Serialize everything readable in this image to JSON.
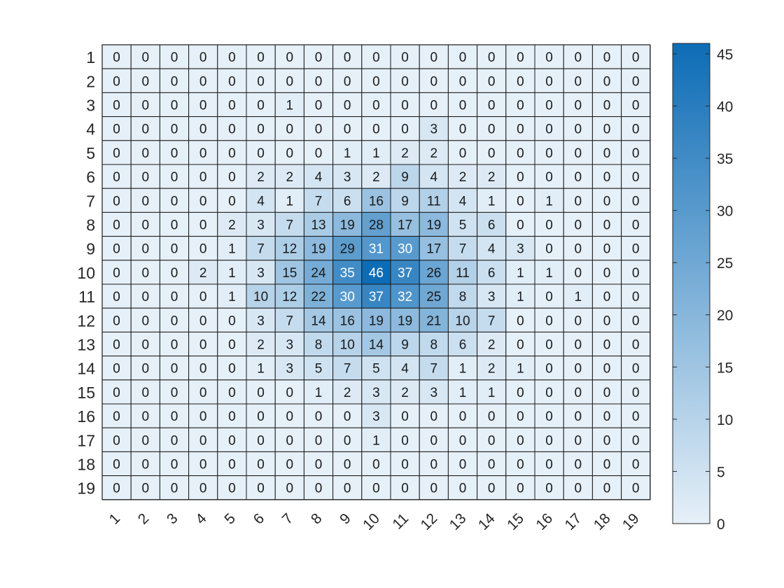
{
  "chart_data": {
    "type": "heatmap",
    "title": "",
    "xlabel": "",
    "ylabel": "",
    "x_tick_labels": [
      "1",
      "2",
      "3",
      "4",
      "5",
      "6",
      "7",
      "8",
      "9",
      "10",
      "11",
      "12",
      "13",
      "14",
      "15",
      "16",
      "17",
      "18",
      "19"
    ],
    "y_tick_labels": [
      "1",
      "2",
      "3",
      "4",
      "5",
      "6",
      "7",
      "8",
      "9",
      "10",
      "11",
      "12",
      "13",
      "14",
      "15",
      "16",
      "17",
      "18",
      "19"
    ],
    "values": [
      [
        0,
        0,
        0,
        0,
        0,
        0,
        0,
        0,
        0,
        0,
        0,
        0,
        0,
        0,
        0,
        0,
        0,
        0,
        0
      ],
      [
        0,
        0,
        0,
        0,
        0,
        0,
        0,
        0,
        0,
        0,
        0,
        0,
        0,
        0,
        0,
        0,
        0,
        0,
        0
      ],
      [
        0,
        0,
        0,
        0,
        0,
        0,
        1,
        0,
        0,
        0,
        0,
        0,
        0,
        0,
        0,
        0,
        0,
        0,
        0
      ],
      [
        0,
        0,
        0,
        0,
        0,
        0,
        0,
        0,
        0,
        0,
        0,
        3,
        0,
        0,
        0,
        0,
        0,
        0,
        0
      ],
      [
        0,
        0,
        0,
        0,
        0,
        0,
        0,
        0,
        1,
        1,
        2,
        2,
        0,
        0,
        0,
        0,
        0,
        0,
        0
      ],
      [
        0,
        0,
        0,
        0,
        0,
        2,
        2,
        4,
        3,
        2,
        9,
        4,
        2,
        2,
        0,
        0,
        0,
        0,
        0
      ],
      [
        0,
        0,
        0,
        0,
        0,
        4,
        1,
        7,
        6,
        16,
        9,
        11,
        4,
        1,
        0,
        1,
        0,
        0,
        0
      ],
      [
        0,
        0,
        0,
        0,
        2,
        3,
        7,
        13,
        19,
        28,
        17,
        19,
        5,
        6,
        0,
        0,
        0,
        0,
        0
      ],
      [
        0,
        0,
        0,
        0,
        1,
        7,
        12,
        19,
        29,
        31,
        30,
        17,
        7,
        4,
        3,
        0,
        0,
        0,
        0
      ],
      [
        0,
        0,
        0,
        2,
        1,
        3,
        15,
        24,
        35,
        46,
        37,
        26,
        11,
        6,
        1,
        1,
        0,
        0,
        0
      ],
      [
        0,
        0,
        0,
        0,
        1,
        10,
        12,
        22,
        30,
        37,
        32,
        25,
        8,
        3,
        1,
        0,
        1,
        0,
        0
      ],
      [
        0,
        0,
        0,
        0,
        0,
        3,
        7,
        14,
        16,
        19,
        19,
        21,
        10,
        7,
        0,
        0,
        0,
        0,
        0
      ],
      [
        0,
        0,
        0,
        0,
        0,
        2,
        3,
        8,
        10,
        14,
        9,
        8,
        6,
        2,
        0,
        0,
        0,
        0,
        0
      ],
      [
        0,
        0,
        0,
        0,
        0,
        1,
        3,
        5,
        7,
        5,
        4,
        7,
        1,
        2,
        1,
        0,
        0,
        0,
        0
      ],
      [
        0,
        0,
        0,
        0,
        0,
        0,
        0,
        1,
        2,
        3,
        2,
        3,
        1,
        1,
        0,
        0,
        0,
        0,
        0
      ],
      [
        0,
        0,
        0,
        0,
        0,
        0,
        0,
        0,
        0,
        3,
        0,
        0,
        0,
        0,
        0,
        0,
        0,
        0,
        0
      ],
      [
        0,
        0,
        0,
        0,
        0,
        0,
        0,
        0,
        0,
        1,
        0,
        0,
        0,
        0,
        0,
        0,
        0,
        0,
        0
      ],
      [
        0,
        0,
        0,
        0,
        0,
        0,
        0,
        0,
        0,
        0,
        0,
        0,
        0,
        0,
        0,
        0,
        0,
        0,
        0
      ],
      [
        0,
        0,
        0,
        0,
        0,
        0,
        0,
        0,
        0,
        0,
        0,
        0,
        0,
        0,
        0,
        0,
        0,
        0,
        0
      ]
    ],
    "color_range": [
      0,
      46
    ],
    "colormap": {
      "low": "#e6f0f8",
      "high": "#0d6cb6"
    },
    "colorbar": {
      "ticks": [
        0,
        5,
        10,
        15,
        20,
        25,
        30,
        35,
        40,
        45
      ],
      "tick_labels": [
        "0",
        "5",
        "10",
        "15",
        "20",
        "25",
        "30",
        "35",
        "40",
        "45"
      ]
    },
    "x_tick_rotation_deg": 45,
    "legend": "colorbar-right",
    "grid": true
  }
}
